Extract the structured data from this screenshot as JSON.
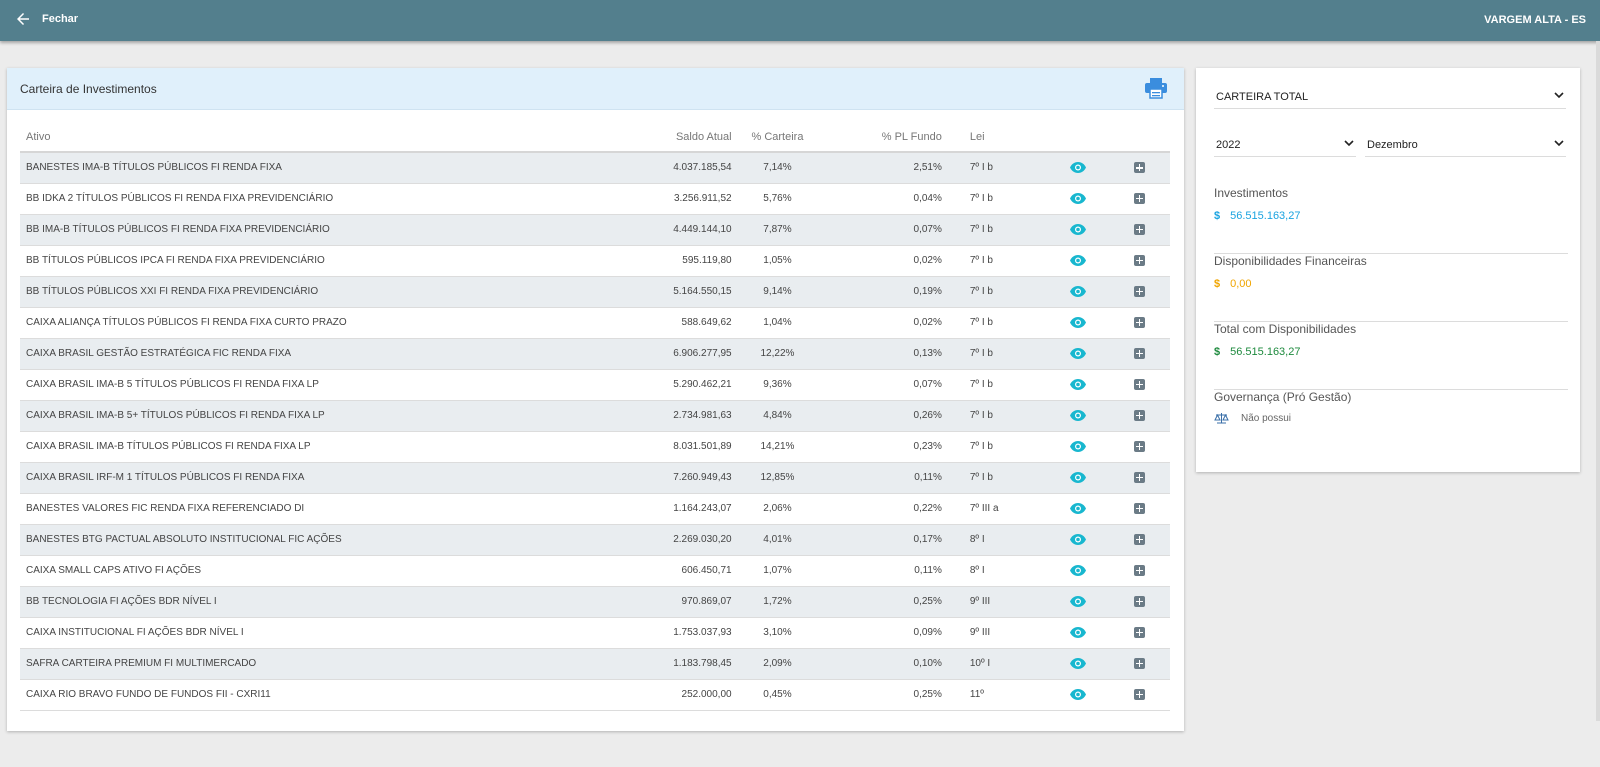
{
  "header": {
    "back_label": "Fechar",
    "municipio": "VARGEM ALTA - ES"
  },
  "carteira": {
    "title": "Carteira de Investimentos",
    "columns": {
      "ativo": "Ativo",
      "saldo": "Saldo Atual",
      "pct_carteira": "% Carteira",
      "pct_pl": "% PL Fundo",
      "lei": "Lei"
    },
    "rows": [
      {
        "ativo": "BANESTES IMA-B TÍTULOS PÚBLICOS FI RENDA FIXA",
        "saldo": "4.037.185,54",
        "pct_carteira": "7,14%",
        "pct_pl": "2,51%",
        "lei": "7º I b"
      },
      {
        "ativo": "BB IDKA 2 TÍTULOS PÚBLICOS FI RENDA FIXA PREVIDENCIÁRIO",
        "saldo": "3.256.911,52",
        "pct_carteira": "5,76%",
        "pct_pl": "0,04%",
        "lei": "7º I b"
      },
      {
        "ativo": "BB IMA-B TÍTULOS PÚBLICOS FI RENDA FIXA PREVIDENCIÁRIO",
        "saldo": "4.449.144,10",
        "pct_carteira": "7,87%",
        "pct_pl": "0,07%",
        "lei": "7º I b"
      },
      {
        "ativo": "BB TÍTULOS PÚBLICOS IPCA FI RENDA FIXA PREVIDENCIÁRIO",
        "saldo": "595.119,80",
        "pct_carteira": "1,05%",
        "pct_pl": "0,02%",
        "lei": "7º I b"
      },
      {
        "ativo": "BB TÍTULOS PÚBLICOS XXI FI RENDA FIXA PREVIDENCIÁRIO",
        "saldo": "5.164.550,15",
        "pct_carteira": "9,14%",
        "pct_pl": "0,19%",
        "lei": "7º I b"
      },
      {
        "ativo": "CAIXA ALIANÇA TÍTULOS PÚBLICOS FI RENDA FIXA CURTO PRAZO",
        "saldo": "588.649,62",
        "pct_carteira": "1,04%",
        "pct_pl": "0,02%",
        "lei": "7º I b"
      },
      {
        "ativo": "CAIXA BRASIL GESTÃO ESTRATÉGICA FIC RENDA FIXA",
        "saldo": "6.906.277,95",
        "pct_carteira": "12,22%",
        "pct_pl": "0,13%",
        "lei": "7º I b"
      },
      {
        "ativo": "CAIXA BRASIL IMA-B 5 TÍTULOS PÚBLICOS FI RENDA FIXA LP",
        "saldo": "5.290.462,21",
        "pct_carteira": "9,36%",
        "pct_pl": "0,07%",
        "lei": "7º I b"
      },
      {
        "ativo": "CAIXA BRASIL IMA-B 5+ TÍTULOS PÚBLICOS FI RENDA FIXA LP",
        "saldo": "2.734.981,63",
        "pct_carteira": "4,84%",
        "pct_pl": "0,26%",
        "lei": "7º I b"
      },
      {
        "ativo": "CAIXA BRASIL IMA-B TÍTULOS PÚBLICOS FI RENDA FIXA LP",
        "saldo": "8.031.501,89",
        "pct_carteira": "14,21%",
        "pct_pl": "0,23%",
        "lei": "7º I b"
      },
      {
        "ativo": "CAIXA BRASIL IRF-M 1 TÍTULOS PÚBLICOS FI RENDA FIXA",
        "saldo": "7.260.949,43",
        "pct_carteira": "12,85%",
        "pct_pl": "0,11%",
        "lei": "7º I b"
      },
      {
        "ativo": "BANESTES VALORES FIC RENDA FIXA REFERENCIADO DI",
        "saldo": "1.164.243,07",
        "pct_carteira": "2,06%",
        "pct_pl": "0,22%",
        "lei": "7º III a"
      },
      {
        "ativo": "BANESTES BTG PACTUAL ABSOLUTO INSTITUCIONAL FIC AÇÕES",
        "saldo": "2.269.030,20",
        "pct_carteira": "4,01%",
        "pct_pl": "0,17%",
        "lei": "8º I"
      },
      {
        "ativo": "CAIXA SMALL CAPS ATIVO FI AÇÕES",
        "saldo": "606.450,71",
        "pct_carteira": "1,07%",
        "pct_pl": "0,11%",
        "lei": "8º I"
      },
      {
        "ativo": "BB TECNOLOGIA FI AÇÕES BDR NÍVEL I",
        "saldo": "970.869,07",
        "pct_carteira": "1,72%",
        "pct_pl": "0,25%",
        "lei": "9º III"
      },
      {
        "ativo": "CAIXA INSTITUCIONAL FI AÇÕES BDR NÍVEL I",
        "saldo": "1.753.037,93",
        "pct_carteira": "3,10%",
        "pct_pl": "0,09%",
        "lei": "9º III"
      },
      {
        "ativo": "SAFRA CARTEIRA PREMIUM FI MULTIMERCADO",
        "saldo": "1.183.798,45",
        "pct_carteira": "2,09%",
        "pct_pl": "0,10%",
        "lei": "10º I"
      },
      {
        "ativo": "CAIXA RIO BRAVO FUNDO DE FUNDOS FII - CXRI11",
        "saldo": "252.000,00",
        "pct_carteira": "0,45%",
        "pct_pl": "0,25%",
        "lei": "11º"
      }
    ],
    "icons": {
      "view": "eye-icon",
      "expand": "plus-square-icon",
      "print": "printer-icon"
    }
  },
  "resumo": {
    "carteira_select": "CARTEIRA TOTAL",
    "ano_select": "2022",
    "mes_select": "Dezembro",
    "investimentos": {
      "label": "Investimentos",
      "currency": "$",
      "value": "56.515.163,27",
      "color": "#1aa3e0"
    },
    "disponibilidades": {
      "label": "Disponibilidades Financeiras",
      "currency": "$",
      "value": "0,00",
      "color": "#f0a500"
    },
    "total": {
      "label": "Total com Disponibilidades",
      "currency": "$",
      "value": "56.515.163,27",
      "color": "#1e8a3e"
    },
    "governanca": {
      "label": "Governança (Pró Gestão)",
      "status": "Não possui"
    }
  },
  "colors": {
    "topbar": "#537f8d",
    "card_header": "#e0f0fb",
    "eye_icon": "#18b7cf",
    "print_icon": "#3a8dde"
  }
}
